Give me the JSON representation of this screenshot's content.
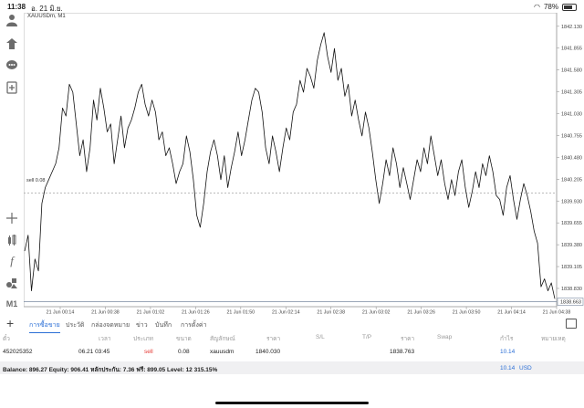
{
  "status": {
    "time": "11:38",
    "date": "อ. 21 มิ.ย.",
    "battery": "78%"
  },
  "chart": {
    "symbol": "XAUUSDm, M1",
    "sell_label": "sell 0.08",
    "price_labels": [
      "1842.130",
      "1841.855",
      "1841.580",
      "1841.305",
      "1841.030",
      "1840.755",
      "1840.480",
      "1840.205",
      "1839.930",
      "1839.655",
      "1839.380",
      "1839.105",
      "1838.830"
    ],
    "current_price": "1838.663",
    "time_labels": [
      "21 Jun 00:14",
      "21 Jun 00:38",
      "21 Jun 01:02",
      "21 Jun 01:26",
      "21 Jun 01:50",
      "21 Jun 02:14",
      "21 Jun 02:38",
      "21 Jun 03:02",
      "21 Jun 03:26",
      "21 Jun 03:50",
      "21 Jun 04:14",
      "21 Jun 04:38"
    ],
    "price_series": [
      1839.3,
      1839.5,
      1838.8,
      1839.2,
      1839.05,
      1839.9,
      1840.1,
      1840.2,
      1840.3,
      1840.4,
      1840.6,
      1841.1,
      1841.0,
      1841.4,
      1841.3,
      1840.9,
      1840.5,
      1840.7,
      1840.3,
      1840.6,
      1841.2,
      1840.95,
      1841.35,
      1841.1,
      1840.8,
      1840.9,
      1840.4,
      1840.7,
      1841.0,
      1840.6,
      1840.85,
      1840.95,
      1841.1,
      1841.3,
      1841.4,
      1841.15,
      1841.0,
      1841.2,
      1841.05,
      1840.7,
      1840.8,
      1840.5,
      1840.6,
      1840.4,
      1840.15,
      1840.3,
      1840.4,
      1840.75,
      1840.55,
      1840.2,
      1839.75,
      1839.6,
      1839.9,
      1840.3,
      1840.55,
      1840.7,
      1840.5,
      1840.2,
      1840.5,
      1840.1,
      1840.35,
      1840.55,
      1840.8,
      1840.5,
      1840.7,
      1840.95,
      1841.2,
      1841.35,
      1841.3,
      1841.05,
      1840.6,
      1840.4,
      1840.75,
      1840.55,
      1840.3,
      1840.6,
      1840.85,
      1840.7,
      1841.05,
      1841.15,
      1841.45,
      1841.3,
      1841.6,
      1841.5,
      1841.35,
      1841.7,
      1841.9,
      1842.05,
      1841.75,
      1841.55,
      1841.85,
      1841.45,
      1841.6,
      1841.25,
      1841.4,
      1841.0,
      1841.2,
      1840.95,
      1840.75,
      1841.05,
      1840.85,
      1840.55,
      1840.2,
      1839.9,
      1840.15,
      1840.45,
      1840.25,
      1840.6,
      1840.4,
      1840.1,
      1840.35,
      1840.15,
      1839.95,
      1840.2,
      1840.45,
      1840.3,
      1840.6,
      1840.4,
      1840.75,
      1840.5,
      1840.25,
      1840.45,
      1840.15,
      1839.95,
      1840.2,
      1840.0,
      1840.3,
      1840.45,
      1840.1,
      1839.85,
      1840.05,
      1840.3,
      1840.1,
      1840.4,
      1840.25,
      1840.5,
      1840.3,
      1840.0,
      1839.95,
      1839.75,
      1840.1,
      1840.25,
      1839.95,
      1839.7,
      1839.95,
      1840.15,
      1840.0,
      1839.8,
      1839.55,
      1839.4,
      1838.85,
      1838.95,
      1838.8,
      1838.9,
      1838.7
    ]
  },
  "tabs": [
    "การซื้อขาย",
    "ประวัติ",
    "กล่องจดหมาย",
    "ข่าว",
    "บันทึก",
    "การตั้งค่า"
  ],
  "table": {
    "headers": [
      "ตั๋ว",
      "เวลา",
      "ประเภท",
      "ขนาด",
      "สัญลักษณ์",
      "ราคา",
      "S/L",
      "T/P",
      "ราคา",
      "Swap",
      "กำไร",
      "หมายเหตุ"
    ],
    "row": {
      "ticket": "452025352",
      "time": "06.21 03:45",
      "type": "sell",
      "size": "0.08",
      "symbol": "xauusdm",
      "price_open": "1840.030",
      "price_current": "1838.763",
      "profit": "10.14"
    }
  },
  "balance": {
    "text": "Balance: 896.27 Equity: 906.41 หลักประกัน: 7.36 ฟรี: 899.05 Level: 12 315.15%",
    "profit": "10.14",
    "currency": "USD"
  },
  "colors": {
    "accent": "#2b6fd6",
    "sell": "#e53935"
  }
}
